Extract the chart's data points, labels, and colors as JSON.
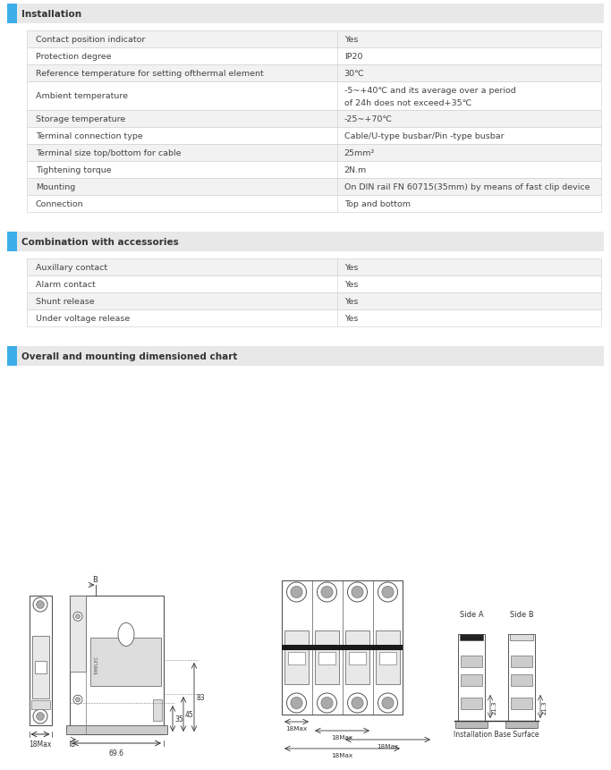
{
  "bg_color": "#ffffff",
  "section_header_bg": "#e8e8e8",
  "section_header_text_color": "#333333",
  "accent_color": "#3daee9",
  "row_odd_bg": "#f2f2f2",
  "row_even_bg": "#ffffff",
  "border_color": "#cccccc",
  "text_color": "#444444",
  "section1_title": "Installation",
  "installation_rows": [
    [
      "Contact position indicator",
      "Yes",
      false
    ],
    [
      "Protection degree",
      "IP20",
      false
    ],
    [
      "Reference temperature for setting ofthermal element",
      "30℃",
      false
    ],
    [
      "Ambient temperature",
      "-5~+40℃ and its average over a period\nof 24h does not exceed+35℃",
      true
    ],
    [
      "Storage temperature",
      "-25~+70℃",
      false
    ],
    [
      "Terminal connection type",
      "Cable/U-type busbar/Pin -type busbar",
      false
    ],
    [
      "Terminal size top/bottom for cable",
      "25mm²",
      false
    ],
    [
      "Tightening torque",
      "2N.m",
      false
    ],
    [
      "Mounting",
      "On DIN rail FN 60715(35mm) by means of fast clip device",
      false
    ],
    [
      "Connection",
      "Top and bottom",
      false
    ]
  ],
  "section2_title": "Combination with accessories",
  "accessories_rows": [
    [
      "Auxillary contact",
      "Yes",
      false
    ],
    [
      "Alarm contact",
      "Yes",
      false
    ],
    [
      "Shunt release",
      "Yes",
      false
    ],
    [
      "Under voltage release",
      "Yes",
      false
    ]
  ],
  "section3_title": "Overall and mounting dimensioned chart"
}
